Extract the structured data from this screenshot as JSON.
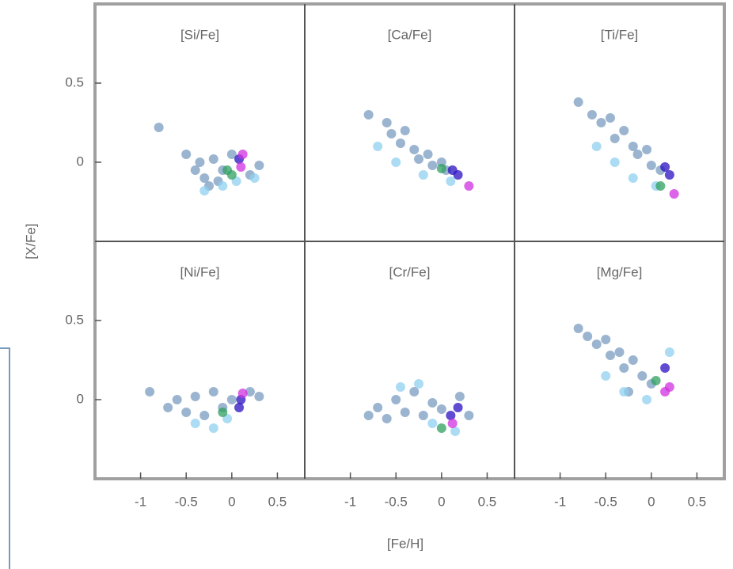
{
  "chart_data": [
    {
      "type": "scatter",
      "title": "[Si/Fe]",
      "ylabel": "[X/Fe]",
      "xlim": [
        -1.5,
        0.8
      ],
      "ylim": [
        -0.5,
        1
      ],
      "yticks": [
        0,
        0.5
      ],
      "series": [
        {
          "color": "#7a9cc0",
          "x": [
            -0.8,
            -0.5,
            -0.4,
            -0.35,
            -0.3,
            -0.2,
            -0.15,
            -0.1,
            0.0,
            0.2,
            0.3,
            -0.25
          ],
          "values": [
            0.22,
            0.05,
            -0.05,
            0.0,
            -0.1,
            0.02,
            -0.12,
            -0.05,
            0.05,
            -0.08,
            -0.02,
            -0.15
          ]
        },
        {
          "color": "#8fd0f0",
          "x": [
            -0.3,
            -0.1,
            0.05,
            0.25
          ],
          "values": [
            -0.18,
            -0.15,
            -0.12,
            -0.1
          ]
        },
        {
          "color": "#30a060",
          "x": [
            -0.05,
            0.0
          ],
          "values": [
            -0.05,
            -0.08
          ]
        },
        {
          "color": "#2a10c0",
          "x": [
            0.08
          ],
          "values": [
            0.02
          ]
        },
        {
          "color": "#d030e0",
          "x": [
            0.1,
            0.12
          ],
          "values": [
            -0.03,
            0.05
          ]
        }
      ]
    },
    {
      "type": "scatter",
      "title": "[Ca/Fe]",
      "xlim": [
        -1.5,
        0.8
      ],
      "ylim": [
        -0.5,
        1
      ],
      "series": [
        {
          "color": "#7a9cc0",
          "x": [
            -0.8,
            -0.6,
            -0.55,
            -0.45,
            -0.4,
            -0.3,
            -0.25,
            -0.15,
            -0.1,
            0.0,
            0.05
          ],
          "values": [
            0.3,
            0.25,
            0.18,
            0.12,
            0.2,
            0.08,
            0.02,
            0.05,
            -0.02,
            0.0,
            -0.05
          ]
        },
        {
          "color": "#8fd0f0",
          "x": [
            -0.7,
            -0.5,
            -0.2,
            0.1
          ],
          "values": [
            0.1,
            0.0,
            -0.08,
            -0.12
          ]
        },
        {
          "color": "#30a060",
          "x": [
            0.0
          ],
          "values": [
            -0.04
          ]
        },
        {
          "color": "#2a10c0",
          "x": [
            0.12,
            0.18
          ],
          "values": [
            -0.05,
            -0.08
          ]
        },
        {
          "color": "#d030e0",
          "x": [
            0.3
          ],
          "values": [
            -0.15
          ]
        }
      ]
    },
    {
      "type": "scatter",
      "title": "[Ti/Fe]",
      "xlim": [
        -1.5,
        0.8
      ],
      "ylim": [
        -0.5,
        1
      ],
      "series": [
        {
          "color": "#7a9cc0",
          "x": [
            -0.8,
            -0.65,
            -0.55,
            -0.45,
            -0.4,
            -0.3,
            -0.2,
            -0.15,
            -0.05,
            0.0,
            0.1
          ],
          "values": [
            0.38,
            0.3,
            0.25,
            0.28,
            0.15,
            0.2,
            0.1,
            0.05,
            0.08,
            -0.02,
            -0.05
          ]
        },
        {
          "color": "#8fd0f0",
          "x": [
            -0.6,
            -0.4,
            -0.2,
            0.05
          ],
          "values": [
            0.1,
            0.0,
            -0.1,
            -0.15
          ]
        },
        {
          "color": "#30a060",
          "x": [
            0.1
          ],
          "values": [
            -0.15
          ]
        },
        {
          "color": "#2a10c0",
          "x": [
            0.2,
            0.15
          ],
          "values": [
            -0.08,
            -0.03
          ]
        },
        {
          "color": "#d030e0",
          "x": [
            0.25
          ],
          "values": [
            -0.2
          ]
        }
      ]
    },
    {
      "type": "scatter",
      "title": "[Ni/Fe]",
      "xlim": [
        -1.5,
        0.8
      ],
      "ylim": [
        -0.5,
        1
      ],
      "xticks": [
        -1,
        -0.5,
        0,
        0.5
      ],
      "yticks": [
        0,
        0.5
      ],
      "series": [
        {
          "color": "#7a9cc0",
          "x": [
            -0.9,
            -0.7,
            -0.6,
            -0.5,
            -0.4,
            -0.3,
            -0.2,
            -0.1,
            0.0,
            0.2,
            0.3
          ],
          "values": [
            0.05,
            -0.05,
            0.0,
            -0.08,
            0.02,
            -0.1,
            0.05,
            -0.05,
            0.0,
            0.05,
            0.02
          ]
        },
        {
          "color": "#8fd0f0",
          "x": [
            -0.4,
            -0.2,
            -0.05
          ],
          "values": [
            -0.15,
            -0.18,
            -0.12
          ]
        },
        {
          "color": "#30a060",
          "x": [
            -0.1
          ],
          "values": [
            -0.08
          ]
        },
        {
          "color": "#2a10c0",
          "x": [
            0.1,
            0.08
          ],
          "values": [
            0.0,
            -0.05
          ]
        },
        {
          "color": "#d030e0",
          "x": [
            0.12
          ],
          "values": [
            0.04
          ]
        }
      ]
    },
    {
      "type": "scatter",
      "title": "[Cr/Fe]",
      "xlabel": "[Fe/H]",
      "xlim": [
        -1.5,
        0.8
      ],
      "ylim": [
        -0.5,
        1
      ],
      "xticks": [
        -1,
        -0.5,
        0,
        0.5
      ],
      "series": [
        {
          "color": "#7a9cc0",
          "x": [
            -0.8,
            -0.7,
            -0.6,
            -0.5,
            -0.4,
            -0.3,
            -0.2,
            -0.1,
            0.0,
            0.2,
            0.3
          ],
          "values": [
            -0.1,
            -0.05,
            -0.12,
            0.0,
            -0.08,
            0.05,
            -0.1,
            -0.02,
            -0.06,
            0.02,
            -0.1
          ]
        },
        {
          "color": "#8fd0f0",
          "x": [
            -0.45,
            -0.25,
            -0.1,
            0.15
          ],
          "values": [
            0.08,
            0.1,
            -0.15,
            -0.2
          ]
        },
        {
          "color": "#30a060",
          "x": [
            0.0
          ],
          "values": [
            -0.18
          ]
        },
        {
          "color": "#2a10c0",
          "x": [
            0.1,
            0.18
          ],
          "values": [
            -0.1,
            -0.05
          ]
        },
        {
          "color": "#d030e0",
          "x": [
            0.12
          ],
          "values": [
            -0.15
          ]
        }
      ]
    },
    {
      "type": "scatter",
      "title": "[Mg/Fe]",
      "xlim": [
        -1.5,
        0.8
      ],
      "ylim": [
        -0.5,
        1
      ],
      "xticks": [
        -1,
        -0.5,
        0,
        0.5
      ],
      "series": [
        {
          "color": "#7a9cc0",
          "x": [
            -0.8,
            -0.7,
            -0.6,
            -0.5,
            -0.45,
            -0.35,
            -0.3,
            -0.2,
            -0.1,
            0.0,
            -0.25
          ],
          "values": [
            0.45,
            0.4,
            0.35,
            0.38,
            0.28,
            0.3,
            0.2,
            0.25,
            0.15,
            0.1,
            0.05
          ]
        },
        {
          "color": "#8fd0f0",
          "x": [
            -0.5,
            -0.3,
            -0.05,
            0.2
          ],
          "values": [
            0.15,
            0.05,
            0.0,
            0.3
          ]
        },
        {
          "color": "#30a060",
          "x": [
            0.05
          ],
          "values": [
            0.12
          ]
        },
        {
          "color": "#2a10c0",
          "x": [
            0.15
          ],
          "values": [
            0.2
          ]
        },
        {
          "color": "#d030e0",
          "x": [
            0.15,
            0.2
          ],
          "values": [
            0.05,
            0.08
          ]
        }
      ]
    }
  ]
}
